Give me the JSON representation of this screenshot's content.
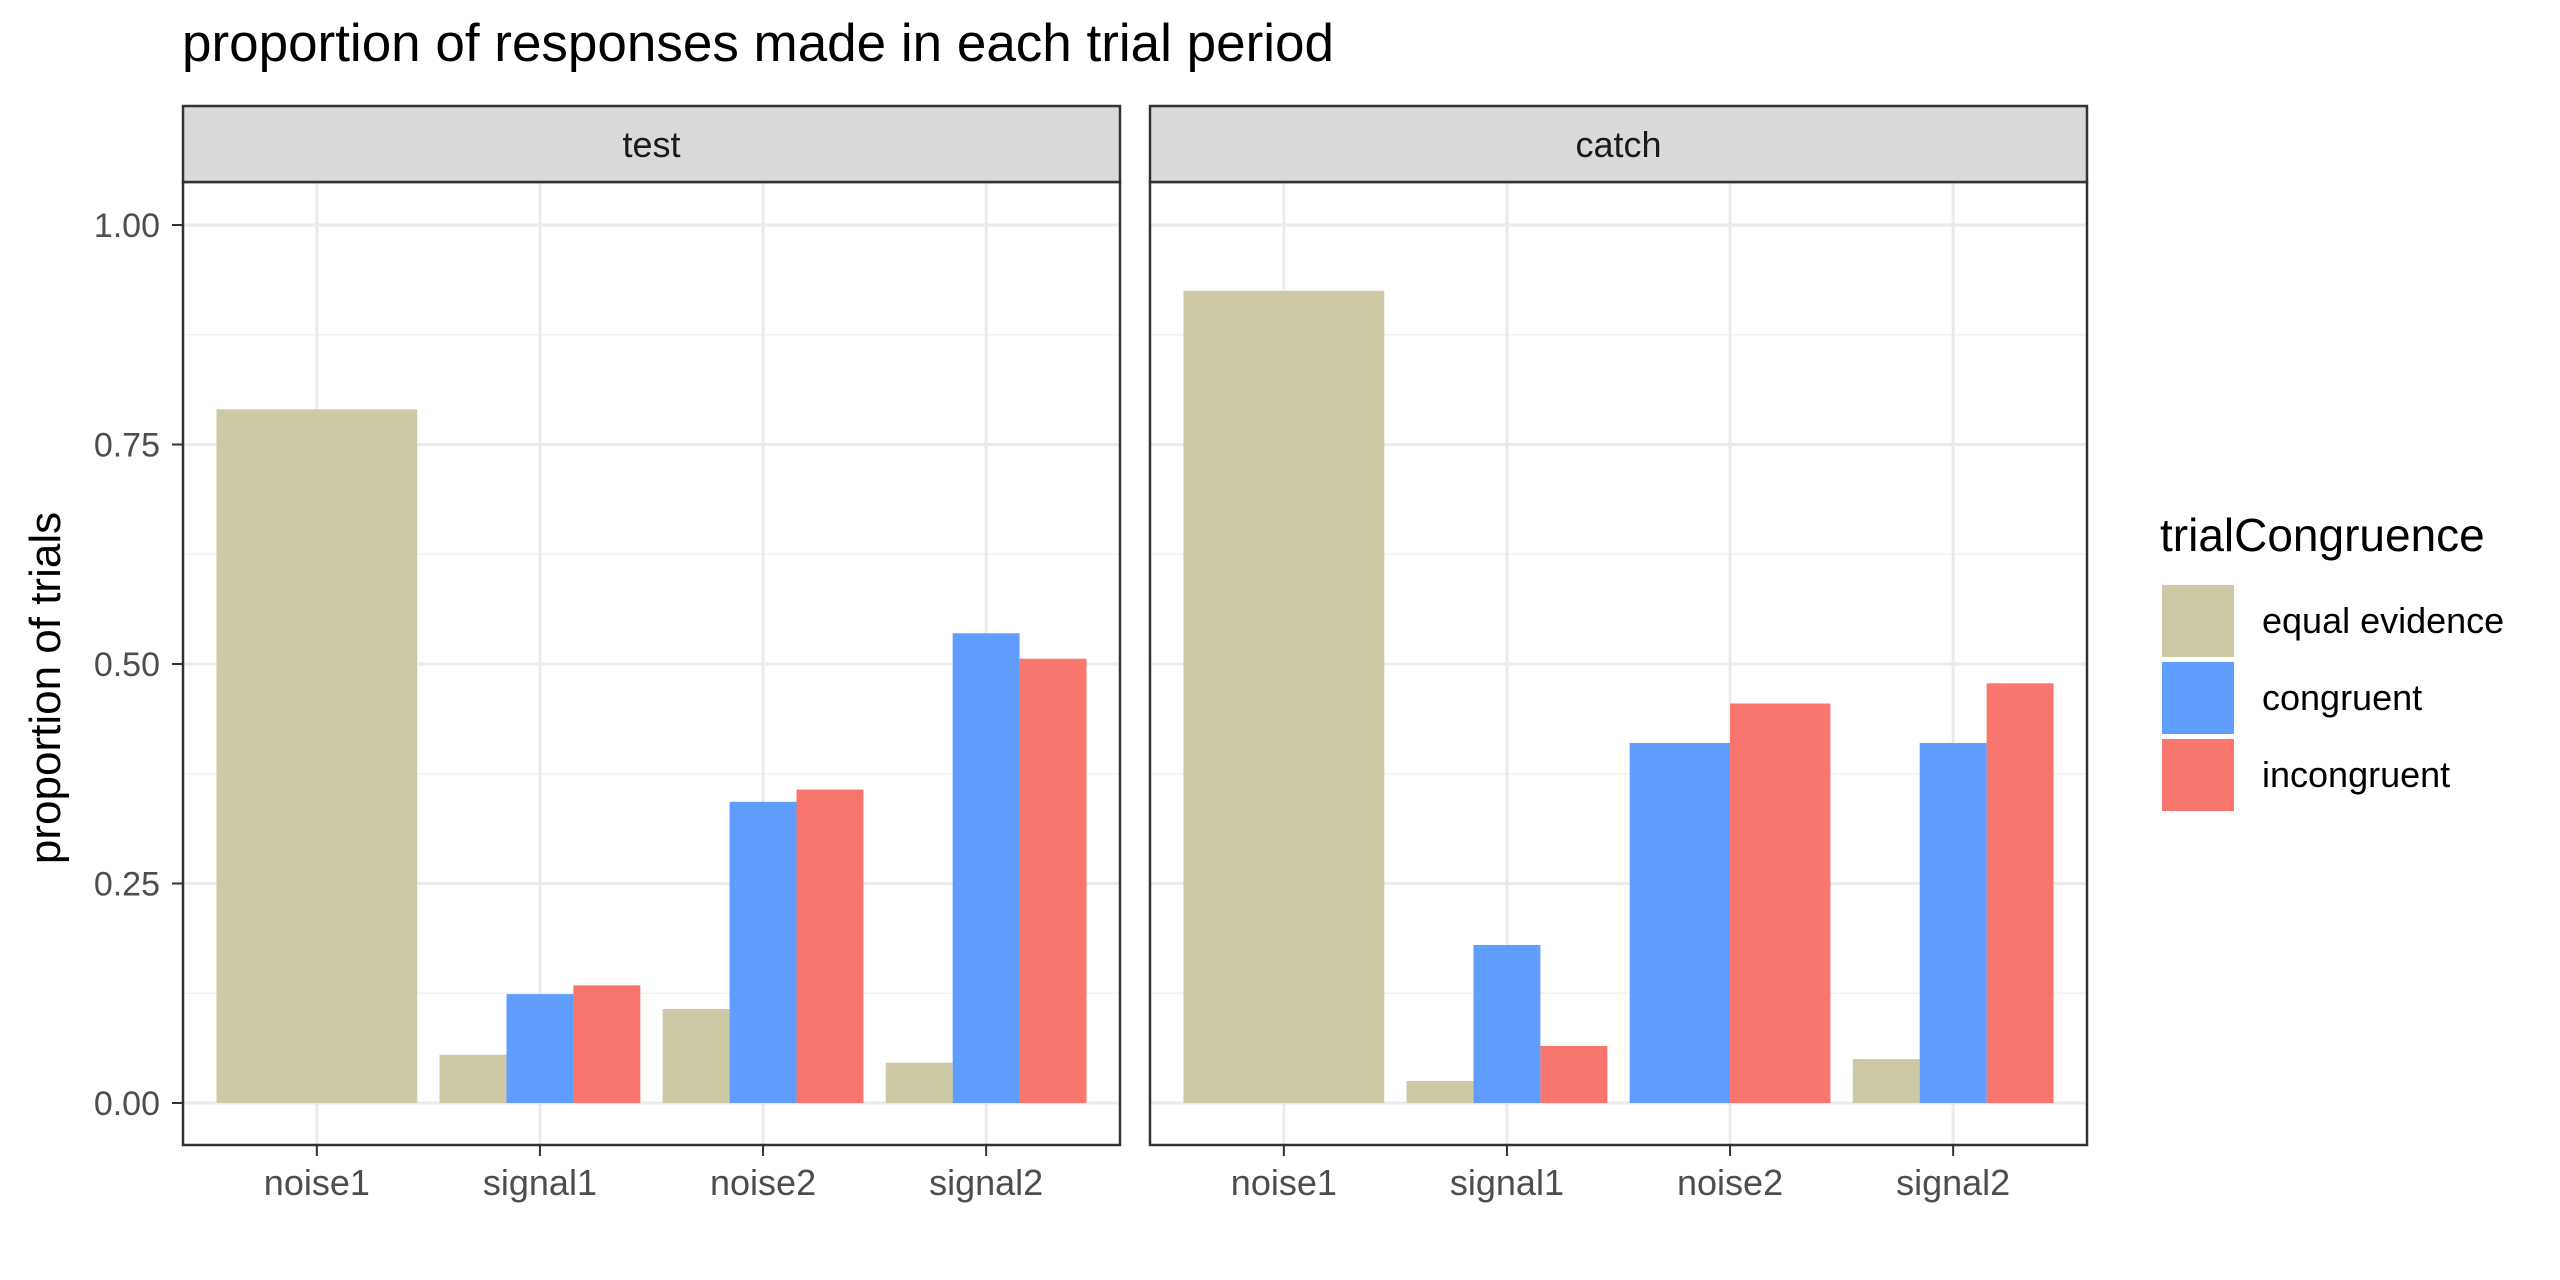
{
  "chart_data": {
    "type": "bar",
    "title": "proportion of responses made in each trial period",
    "xlabel": "",
    "ylabel": "proportion of trials",
    "ylim": [
      0,
      1.05
    ],
    "y_ticks": [
      "0.00",
      "0.25",
      "0.50",
      "0.75",
      "1.00"
    ],
    "y_tick_values": [
      0,
      0.25,
      0.5,
      0.75,
      1.0
    ],
    "grid": true,
    "legend_position": "right",
    "legend_title": "trialCongruence",
    "categories": [
      "noise1",
      "signal1",
      "noise2",
      "signal2"
    ],
    "series": [
      {
        "name": "equal evidence",
        "color": "#CDC9A5"
      },
      {
        "name": "congruent",
        "color": "#619CFF"
      },
      {
        "name": "incongruent",
        "color": "#F8766D"
      }
    ],
    "panels": [
      {
        "name": "test",
        "values": {
          "noise1": [
            0.79,
            null,
            null
          ],
          "signal1": [
            0.055,
            0.124,
            0.134
          ],
          "noise2": [
            0.107,
            0.343,
            0.357
          ],
          "signal2": [
            0.046,
            0.535,
            0.506
          ]
        }
      },
      {
        "name": "catch",
        "values": {
          "noise1": [
            0.925,
            null,
            null
          ],
          "signal1": [
            0.025,
            0.18,
            0.065
          ],
          "noise2": [
            null,
            0.41,
            0.455
          ],
          "signal2": [
            0.05,
            0.41,
            0.478
          ]
        }
      }
    ]
  }
}
